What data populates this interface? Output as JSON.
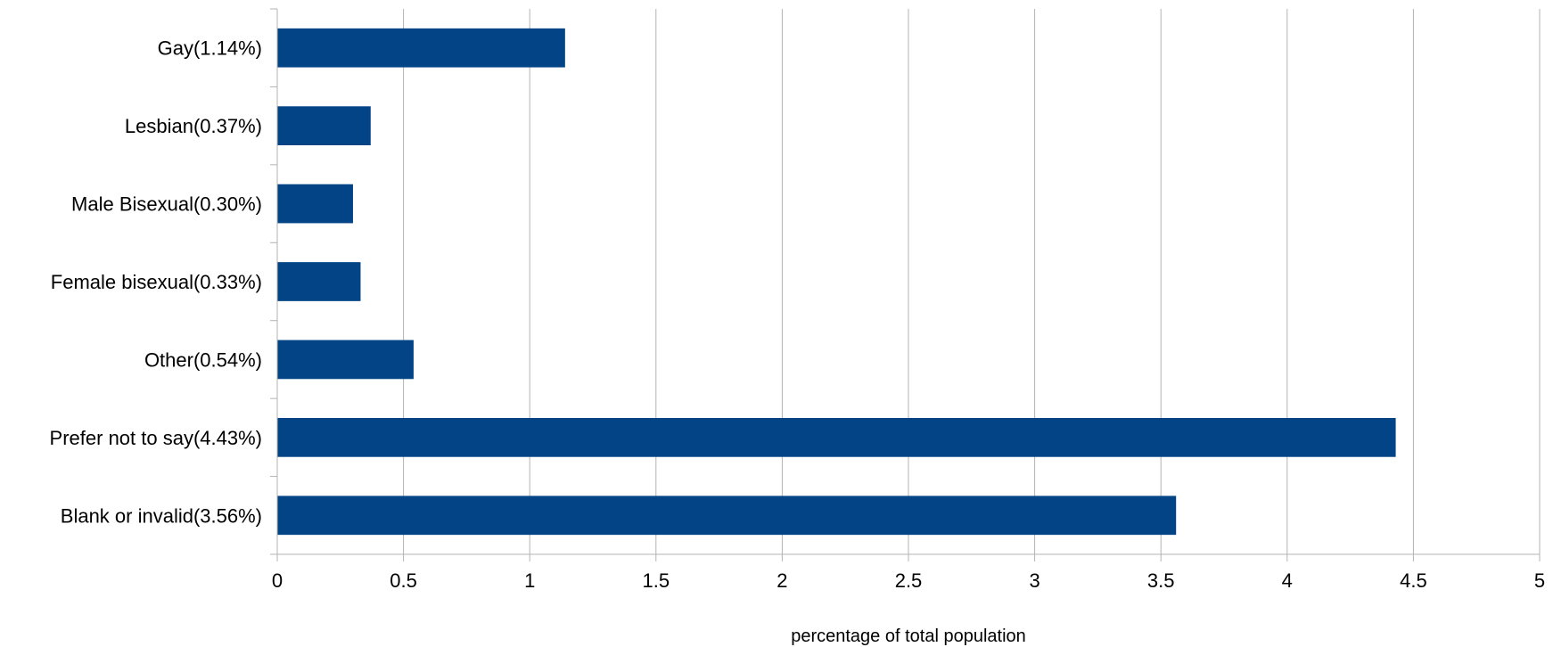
{
  "chart_data": {
    "type": "bar",
    "orientation": "horizontal",
    "categories": [
      "Gay(1.14%)",
      "Lesbian(0.37%)",
      "Male Bisexual(0.30%)",
      "Female bisexual(0.33%)",
      "Other(0.54%)",
      "Prefer not to say(4.43%)",
      "Blank or invalid(3.56%)"
    ],
    "values": [
      1.14,
      0.37,
      0.3,
      0.33,
      0.54,
      4.43,
      3.56
    ],
    "xlabel": "percentage of total population",
    "ylabel": "",
    "xlim": [
      0,
      5
    ],
    "xticks": [
      0,
      0.5,
      1,
      1.5,
      2,
      2.5,
      3,
      3.5,
      4,
      4.5,
      5
    ],
    "xtick_labels": [
      "0",
      "0.5",
      "1",
      "1.5",
      "2",
      "2.5",
      "3",
      "3.5",
      "4",
      "4.5",
      "5"
    ],
    "grid": "vertical",
    "legend": "none",
    "colors": {
      "bar": "#034486",
      "grid": "#b3b3b3",
      "axis": "#b3b3b3"
    }
  }
}
